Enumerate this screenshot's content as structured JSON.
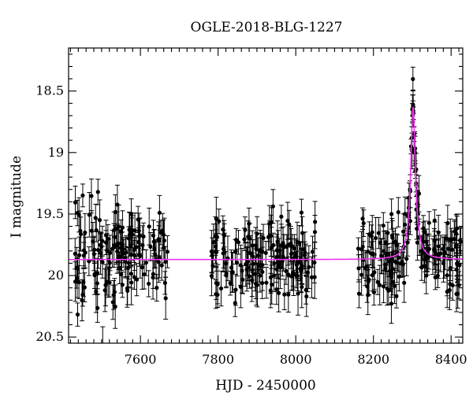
{
  "chart_data": {
    "type": "scatter",
    "title": "OGLE-2018-BLG-1227",
    "xlabel": "HJD - 2450000",
    "ylabel": "I magnitude",
    "xlim": [
      7415,
      8430
    ],
    "ylim": [
      20.55,
      18.15
    ],
    "y_inverted": true,
    "xticks": [
      7600,
      7800,
      8000,
      8200,
      8400
    ],
    "yticks": [
      18.5,
      19,
      19.5,
      20,
      20.5
    ],
    "yticklabels": [
      "18.5",
      "19",
      "19.5",
      "20",
      "20.5"
    ],
    "colors": {
      "data": "#000000",
      "model": "#ee33ee"
    },
    "baseline_magnitude": 19.87,
    "model": {
      "t0": 8302,
      "peak_magnitude": 18.63,
      "tE": 5.5
    },
    "observation_seasons": [
      {
        "start": 7430,
        "end": 7670,
        "n_points": 150,
        "mean_mag": 19.9,
        "scatter": 0.19,
        "err": 0.13
      },
      {
        "start": 7780,
        "end": 8050,
        "n_points": 160,
        "mean_mag": 19.89,
        "scatter": 0.17,
        "err": 0.13
      },
      {
        "start": 8160,
        "end": 8425,
        "n_points": 170,
        "mean_mag": 19.88,
        "scatter": 0.16,
        "err": 0.12
      }
    ],
    "peak_points": [
      {
        "x": 8300,
        "y": 18.65,
        "err": 0.05
      },
      {
        "x": 8301,
        "y": 18.7,
        "err": 0.05
      },
      {
        "x": 8302,
        "y": 18.63,
        "err": 0.05
      },
      {
        "x": 8303,
        "y": 18.68,
        "err": 0.05
      },
      {
        "x": 8305,
        "y": 18.85,
        "err": 0.06
      },
      {
        "x": 8297,
        "y": 18.95,
        "err": 0.06
      },
      {
        "x": 8308,
        "y": 19.15,
        "err": 0.06
      },
      {
        "x": 8310,
        "y": 19.25,
        "err": 0.07
      },
      {
        "x": 8294,
        "y": 19.3,
        "err": 0.07
      },
      {
        "x": 8312,
        "y": 19.35,
        "err": 0.07
      },
      {
        "x": 8291,
        "y": 19.45,
        "err": 0.08
      },
      {
        "x": 8315,
        "y": 19.5,
        "err": 0.08
      }
    ]
  }
}
